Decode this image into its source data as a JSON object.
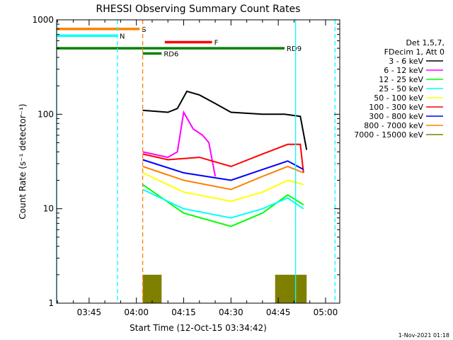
{
  "chart_data": {
    "type": "line",
    "title": "RHESSI Observing Summary Count Rates",
    "xlabel": "Start Time (12-Oct-15 03:34:42)",
    "ylabel": "Count Rate (s⁻¹ detector⁻¹)",
    "y_scale": "log",
    "ylim": [
      1,
      1000
    ],
    "xlim": [
      "03:34:42",
      "05:04:30"
    ],
    "x_ticks": [
      "03:45",
      "04:00",
      "04:15",
      "04:30",
      "04:45",
      "05:00"
    ],
    "y_ticks": [
      "1",
      "10",
      "100",
      "1000"
    ],
    "footer": "1-Nov-2021 01:18",
    "legend_header": [
      "Det 1,5,7,",
      "FDecim 1, Att 0"
    ],
    "series": [
      {
        "name": "3 - 6 keV",
        "color": "#000000",
        "x": [
          "04:02",
          "04:10",
          "04:13",
          "04:16",
          "04:20",
          "04:25",
          "04:30",
          "04:40",
          "04:47",
          "04:52",
          "04:54"
        ],
        "values": [
          110,
          105,
          115,
          175,
          160,
          130,
          105,
          100,
          100,
          95,
          42
        ]
      },
      {
        "name": "6 - 12 keV",
        "color": "#ff00ff",
        "x": [
          "04:02",
          "04:10",
          "04:13",
          "04:15",
          "04:18",
          "04:21",
          "04:23",
          "04:25"
        ],
        "values": [
          40,
          35,
          40,
          105,
          70,
          60,
          50,
          22
        ]
      },
      {
        "name": "12 - 25 keV",
        "color": "#00ff00",
        "x": [
          "04:02",
          "04:15",
          "04:30",
          "04:40",
          "04:48",
          "04:53"
        ],
        "values": [
          18,
          9,
          6.5,
          9,
          14,
          11
        ]
      },
      {
        "name": "25 - 50 keV",
        "color": "#00ffff",
        "x": [
          "04:02",
          "04:15",
          "04:30",
          "04:40",
          "04:48",
          "04:53"
        ],
        "values": [
          16,
          10,
          8,
          10,
          13,
          10
        ]
      },
      {
        "name": "50 - 100 keV",
        "color": "#ffff00",
        "x": [
          "04:02",
          "04:15",
          "04:30",
          "04:40",
          "04:48",
          "04:53"
        ],
        "values": [
          24,
          15,
          12,
          15,
          20,
          18
        ]
      },
      {
        "name": "100 - 300 keV",
        "color": "#ff0000",
        "x": [
          "04:02",
          "04:10",
          "04:20",
          "04:30",
          "04:40",
          "04:48",
          "04:52",
          "04:53"
        ],
        "values": [
          38,
          33,
          35,
          28,
          38,
          48,
          48,
          24
        ]
      },
      {
        "name": "300 - 800 keV",
        "color": "#0000ff",
        "x": [
          "04:02",
          "04:15",
          "04:30",
          "04:40",
          "04:48",
          "04:53"
        ],
        "values": [
          33,
          24,
          20,
          26,
          32,
          26
        ]
      },
      {
        "name": "800 - 7000 keV",
        "color": "#ff8000",
        "x": [
          "04:02",
          "04:15",
          "04:30",
          "04:40",
          "04:48",
          "04:53"
        ],
        "values": [
          28,
          20,
          16,
          22,
          28,
          24
        ]
      },
      {
        "name": "7000 - 15000 keV",
        "color": "#808000",
        "x": [
          "04:02",
          "04:08",
          "04:44",
          "04:54"
        ],
        "values": [
          2,
          2,
          2,
          2
        ]
      }
    ],
    "flags": [
      {
        "label": "S",
        "color": "#ff8000",
        "x": [
          "03:34:42",
          "04:01"
        ],
        "y": 800
      },
      {
        "label": "N",
        "color": "#00ffff",
        "x": [
          "03:34:42",
          "03:54"
        ],
        "y": 680
      },
      {
        "label": "F",
        "color": "#ff0000",
        "x": [
          "04:09",
          "04:24"
        ],
        "y": 580
      },
      {
        "label": "RD9",
        "color": "#008000",
        "x": [
          "03:34:42",
          "04:47"
        ],
        "y": 500
      },
      {
        "label": "RD6",
        "color": "#008000",
        "x": [
          "04:02",
          "04:08"
        ],
        "y": 440
      }
    ],
    "vertical_markers": [
      {
        "color": "#00ffff",
        "style": "solid",
        "x": "03:34:42"
      },
      {
        "color": "#00ffff",
        "style": "dashed",
        "x": "03:54"
      },
      {
        "color": "#ff8000",
        "style": "dashed",
        "x": "04:02"
      },
      {
        "color": "#00ffff",
        "style": "solid",
        "x": "04:50:30"
      },
      {
        "color": "#00ffff",
        "style": "dashed",
        "x": "05:03"
      }
    ]
  }
}
